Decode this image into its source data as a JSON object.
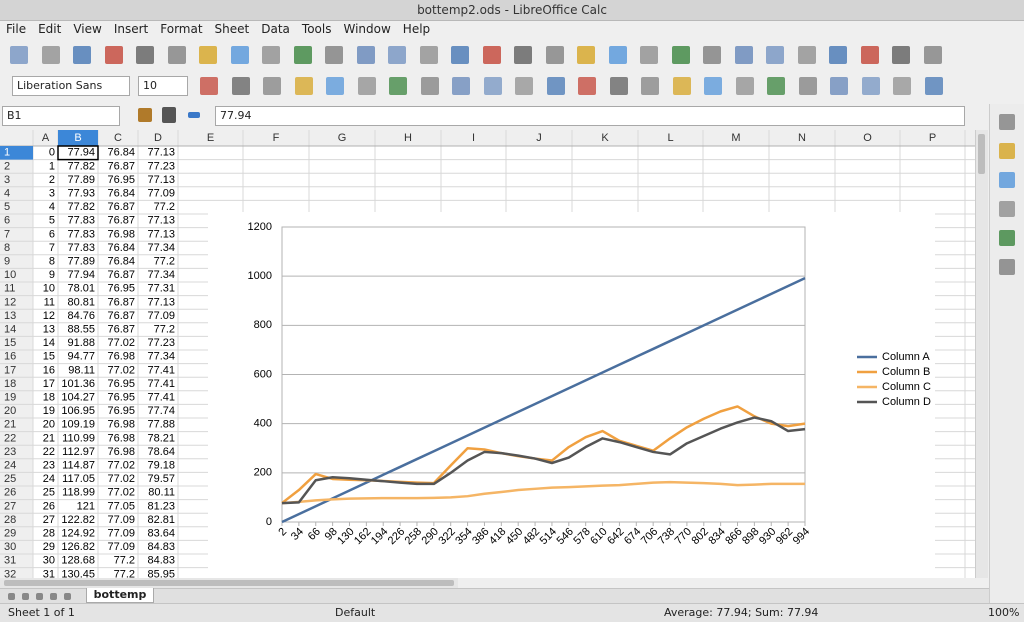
{
  "window": {
    "title": "bottemp2.ods - LibreOffice Calc"
  },
  "menu": [
    "File",
    "Edit",
    "View",
    "Insert",
    "Format",
    "Sheet",
    "Data",
    "Tools",
    "Window",
    "Help"
  ],
  "font_name": "Liberation Sans",
  "font_size": 10,
  "name_box": "B1",
  "formula": "77.94",
  "columns": [
    "A",
    "B",
    "C",
    "D",
    "E",
    "F",
    "G",
    "H",
    "I",
    "J",
    "K",
    "L",
    "M",
    "N",
    "O",
    "P"
  ],
  "rows": [
    1,
    2,
    3,
    4,
    5,
    6,
    7,
    8,
    9,
    10,
    11,
    12,
    13,
    14,
    15,
    16,
    17,
    18,
    19,
    20,
    21,
    22,
    23,
    24,
    25,
    26,
    27,
    28,
    29,
    30,
    31,
    32
  ],
  "cells": [
    [
      0,
      77.94,
      76.84,
      77.13
    ],
    [
      1,
      77.82,
      76.87,
      77.23
    ],
    [
      2,
      77.89,
      76.95,
      77.13
    ],
    [
      3,
      77.93,
      76.84,
      77.09
    ],
    [
      4,
      77.82,
      76.87,
      77.2
    ],
    [
      5,
      77.83,
      76.87,
      77.13
    ],
    [
      6,
      77.83,
      76.98,
      77.13
    ],
    [
      7,
      77.83,
      76.84,
      77.34
    ],
    [
      8,
      77.89,
      76.84,
      77.2
    ],
    [
      9,
      77.94,
      76.87,
      77.34
    ],
    [
      10,
      78.01,
      76.95,
      77.31
    ],
    [
      11,
      80.81,
      76.87,
      77.13
    ],
    [
      12,
      84.76,
      76.87,
      77.09
    ],
    [
      13,
      88.55,
      76.87,
      77.2
    ],
    [
      14,
      91.88,
      77.02,
      77.23
    ],
    [
      15,
      94.77,
      76.98,
      77.34
    ],
    [
      16,
      98.11,
      77.02,
      77.41
    ],
    [
      17,
      101.36,
      76.95,
      77.41
    ],
    [
      18,
      104.27,
      76.95,
      77.41
    ],
    [
      19,
      106.95,
      76.95,
      77.74
    ],
    [
      20,
      109.19,
      76.98,
      77.88
    ],
    [
      21,
      110.99,
      76.98,
      78.21
    ],
    [
      22,
      112.97,
      76.98,
      78.64
    ],
    [
      23,
      114.87,
      77.02,
      79.18
    ],
    [
      24,
      117.05,
      77.02,
      79.57
    ],
    [
      25,
      118.99,
      77.02,
      80.11
    ],
    [
      26,
      121,
      77.05,
      81.23
    ],
    [
      27,
      122.82,
      77.09,
      82.81
    ],
    [
      28,
      124.92,
      77.09,
      83.64
    ],
    [
      29,
      126.82,
      77.09,
      84.83
    ],
    [
      30,
      128.68,
      77.2,
      84.83
    ],
    [
      31,
      130.45,
      77.2,
      85.95
    ]
  ],
  "sheet_tab": "bottemp",
  "status": {
    "sheet": "Sheet 1 of 1",
    "style": "Default",
    "sum": "Average: 77.94; Sum: 77.94",
    "zoom": "100%"
  },
  "chart_data": {
    "type": "line",
    "categories": [
      2,
      34,
      66,
      98,
      130,
      162,
      194,
      226,
      258,
      290,
      322,
      354,
      386,
      418,
      450,
      482,
      514,
      546,
      578,
      610,
      642,
      674,
      706,
      738,
      770,
      802,
      834,
      866,
      898,
      930,
      962,
      994
    ],
    "series": [
      {
        "name": "Column A",
        "color": "#4a6f9e",
        "values": [
          0,
          32,
          64,
          96,
          128,
          160,
          192,
          224,
          256,
          288,
          320,
          352,
          384,
          416,
          448,
          480,
          512,
          544,
          576,
          608,
          640,
          672,
          704,
          736,
          768,
          800,
          832,
          864,
          896,
          928,
          960,
          992
        ]
      },
      {
        "name": "Column B",
        "color": "#f0a040",
        "values": [
          77,
          130,
          195,
          175,
          172,
          170,
          167,
          163,
          160,
          158,
          230,
          300,
          295,
          280,
          268,
          258,
          250,
          305,
          345,
          370,
          330,
          310,
          290,
          340,
          385,
          420,
          450,
          470,
          430,
          400,
          390,
          400
        ]
      },
      {
        "name": "Column C",
        "color": "#f5b565",
        "values": [
          77,
          82,
          88,
          92,
          95,
          96,
          97,
          97,
          97,
          98,
          100,
          105,
          115,
          122,
          130,
          135,
          140,
          142,
          145,
          148,
          150,
          155,
          160,
          162,
          160,
          158,
          155,
          150,
          152,
          155,
          155,
          155
        ]
      },
      {
        "name": "Column D",
        "color": "#555555",
        "values": [
          77,
          80,
          170,
          182,
          178,
          172,
          166,
          160,
          155,
          155,
          200,
          250,
          285,
          280,
          270,
          258,
          240,
          262,
          305,
          340,
          325,
          305,
          285,
          275,
          320,
          350,
          380,
          405,
          425,
          410,
          370,
          378
        ]
      }
    ],
    "ylim": [
      0,
      1200
    ],
    "yticks": [
      0,
      200,
      400,
      600,
      800,
      1000,
      1200
    ],
    "grid": true,
    "legend": "right"
  }
}
